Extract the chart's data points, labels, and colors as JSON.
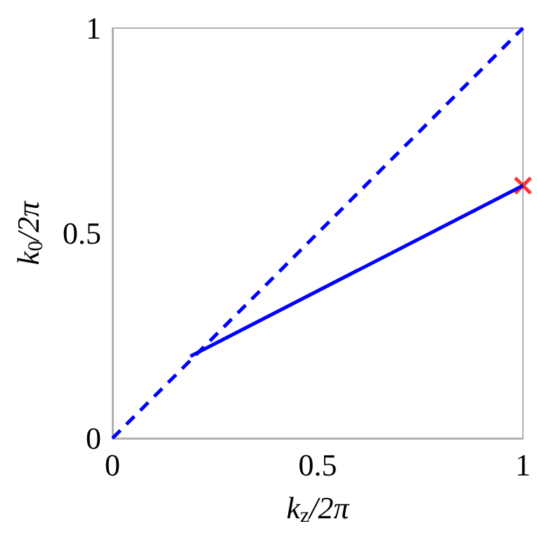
{
  "chart_data": {
    "type": "line",
    "xlabel": "k$_{z}$/2π",
    "ylabel": "k$_{0}$/2π",
    "xlim": [
      0,
      1
    ],
    "ylim": [
      0,
      1
    ],
    "xticks": [
      0,
      0.5,
      1
    ],
    "yticks": [
      0,
      0.5,
      1
    ],
    "series": [
      {
        "color": "#0000ff",
        "line_style": "dashed",
        "x": [
          0,
          1
        ],
        "values": [
          0,
          1
        ]
      },
      {
        "color": "#0000ff",
        "line_style": "solid",
        "x": [
          0.19,
          1
        ],
        "values": [
          0.2,
          0.616
        ]
      },
      {
        "type": "scatter",
        "color": "#ff0000",
        "marker": "cross",
        "x": [
          1
        ],
        "values": [
          0.616
        ]
      }
    ]
  }
}
